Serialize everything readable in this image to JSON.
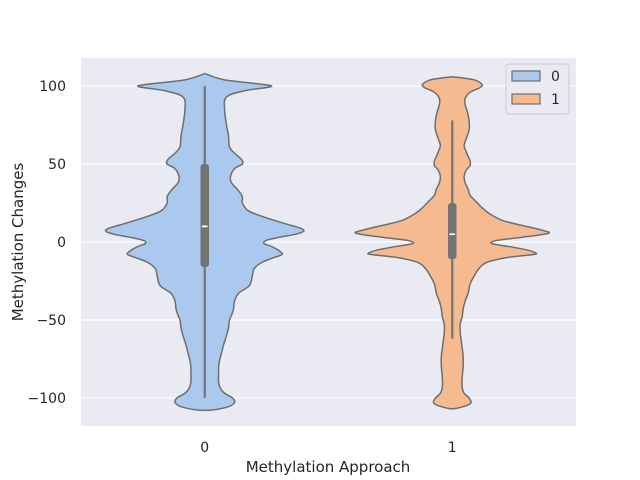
{
  "chart_data": {
    "type": "violin",
    "title": "",
    "xlabel": "Methylation Approach",
    "ylabel": "Methylation Changes",
    "categories": [
      "0",
      "1"
    ],
    "ylim": [
      -118,
      118
    ],
    "yticks": [
      100,
      50,
      0,
      -50,
      -100
    ],
    "ytick_labels": [
      "100",
      "50",
      "0",
      "−50",
      "−100"
    ],
    "grid": true,
    "legend": {
      "placement": "top-right",
      "entries": [
        "0",
        "1"
      ]
    },
    "colors": {
      "0": "#abc9ee",
      "1": "#f5ba90",
      "edge": "#6e6e6e",
      "background": "#eaeaf2",
      "grid": "#ffffff"
    },
    "series": [
      {
        "category": "0",
        "median": 10,
        "q1": -16,
        "q3": 50,
        "whisker_low": -100,
        "whisker_high": 100,
        "density_profile": [
          [
            108,
            0
          ],
          [
            104,
            20
          ],
          [
            101,
            60
          ],
          [
            99.5,
            66
          ],
          [
            97,
            40
          ],
          [
            93,
            22
          ],
          [
            85,
            20
          ],
          [
            75,
            22
          ],
          [
            68,
            24
          ],
          [
            61,
            25
          ],
          [
            57,
            30
          ],
          [
            53,
            37
          ],
          [
            50,
            38
          ],
          [
            47,
            30
          ],
          [
            42,
            26
          ],
          [
            38,
            27
          ],
          [
            33,
            34
          ],
          [
            29,
            38
          ],
          [
            25,
            38
          ],
          [
            20,
            44
          ],
          [
            16,
            60
          ],
          [
            12,
            80
          ],
          [
            9,
            96
          ],
          [
            7,
            100
          ],
          [
            5,
            92
          ],
          [
            3,
            75
          ],
          [
            1,
            62
          ],
          [
            -1,
            60
          ],
          [
            -3,
            68
          ],
          [
            -6,
            76
          ],
          [
            -8,
            78
          ],
          [
            -10,
            70
          ],
          [
            -13,
            58
          ],
          [
            -17,
            50
          ],
          [
            -22,
            48
          ],
          [
            -28,
            45
          ],
          [
            -33,
            34
          ],
          [
            -38,
            30
          ],
          [
            -43,
            29
          ],
          [
            -47,
            27
          ],
          [
            -50,
            25
          ],
          [
            -55,
            24
          ],
          [
            -60,
            22
          ],
          [
            -66,
            19
          ],
          [
            -71,
            17
          ],
          [
            -76,
            15
          ],
          [
            -80,
            14
          ],
          [
            -85,
            14
          ],
          [
            -90,
            14
          ],
          [
            -94,
            16
          ],
          [
            -97,
            20
          ],
          [
            -100,
            28
          ],
          [
            -103,
            30
          ],
          [
            -106,
            22
          ],
          [
            -108,
            0
          ]
        ]
      },
      {
        "category": "1",
        "median": 5,
        "q1": -11,
        "q3": 25,
        "whisker_low": -62,
        "whisker_high": 78,
        "density_profile": [
          [
            106,
            0
          ],
          [
            104,
            22
          ],
          [
            101,
            30
          ],
          [
            99,
            28
          ],
          [
            96,
            18
          ],
          [
            92,
            13
          ],
          [
            88,
            13
          ],
          [
            84,
            15
          ],
          [
            78,
            17
          ],
          [
            72,
            17
          ],
          [
            66,
            14
          ],
          [
            62,
            12
          ],
          [
            58,
            14
          ],
          [
            55,
            16
          ],
          [
            52,
            18
          ],
          [
            49,
            18
          ],
          [
            46,
            14
          ],
          [
            42,
            12
          ],
          [
            38,
            13
          ],
          [
            34,
            16
          ],
          [
            30,
            18
          ],
          [
            26,
            24
          ],
          [
            22,
            30
          ],
          [
            18,
            38
          ],
          [
            14,
            50
          ],
          [
            11,
            68
          ],
          [
            9,
            82
          ],
          [
            7,
            94
          ],
          [
            6,
            98
          ],
          [
            5,
            93
          ],
          [
            3,
            70
          ],
          [
            1,
            45
          ],
          [
            -1,
            40
          ],
          [
            -3,
            58
          ],
          [
            -5,
            75
          ],
          [
            -7,
            84
          ],
          [
            -8,
            82
          ],
          [
            -10,
            55
          ],
          [
            -13,
            35
          ],
          [
            -17,
            27
          ],
          [
            -22,
            22
          ],
          [
            -27,
            18
          ],
          [
            -33,
            16
          ],
          [
            -38,
            13
          ],
          [
            -43,
            11
          ],
          [
            -48,
            10
          ],
          [
            -53,
            8
          ],
          [
            -58,
            8
          ],
          [
            -63,
            9
          ],
          [
            -68,
            10
          ],
          [
            -73,
            11
          ],
          [
            -80,
            11
          ],
          [
            -87,
            10
          ],
          [
            -93,
            10
          ],
          [
            -97,
            12
          ],
          [
            -100,
            17
          ],
          [
            -103,
            19
          ],
          [
            -105,
            14
          ],
          [
            -107,
            0
          ]
        ]
      }
    ]
  }
}
